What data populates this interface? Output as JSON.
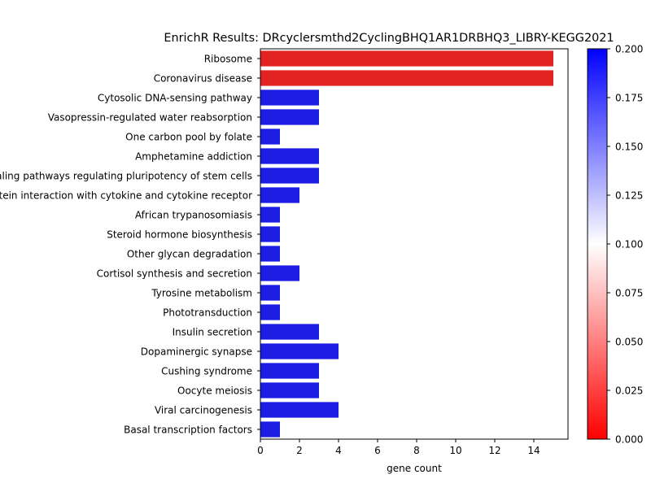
{
  "chart_data": {
    "type": "bar",
    "orientation": "horizontal",
    "title": "EnrichR Results: DRcyclersmthd2CyclingBHQ1AR1DRBHQ3_LIBRY-KEGG2021",
    "xlabel": "gene count",
    "ylabel": "",
    "xlim": [
      0,
      15.75
    ],
    "xticks": [
      0,
      2,
      4,
      6,
      8,
      10,
      12,
      14
    ],
    "grid": false,
    "categories": [
      "Ribosome",
      "Coronavirus disease",
      "Cytosolic DNA-sensing pathway",
      "Vasopressin-regulated water reabsorption",
      "One carbon pool by folate",
      "Amphetamine addiction",
      "Signaling pathways regulating pluripotency of stem cells",
      "Viral protein interaction with cytokine and cytokine receptor",
      "African trypanosomiasis",
      "Steroid hormone biosynthesis",
      "Other glycan degradation",
      "Cortisol synthesis and secretion",
      "Tyrosine metabolism",
      "Phototransduction",
      "Insulin secretion",
      "Dopaminergic synapse",
      "Cushing syndrome",
      "Oocyte meiosis",
      "Viral carcinogenesis",
      "Basal transcription factors"
    ],
    "values": [
      15,
      15,
      3,
      3,
      1,
      3,
      3,
      2,
      1,
      1,
      1,
      2,
      1,
      1,
      3,
      4,
      3,
      3,
      4,
      1
    ],
    "bar_colors": [
      "#e32222",
      "#e32222",
      "#1c1ce3",
      "#1c1ce3",
      "#1c1ce3",
      "#1c1ce3",
      "#1c1ce3",
      "#1c1ce3",
      "#1c1ce3",
      "#1c1ce3",
      "#1c1ce3",
      "#1c1ce3",
      "#1c1ce3",
      "#1c1ce3",
      "#1c1ce3",
      "#1c1ce3",
      "#1c1ce3",
      "#1c1ce3",
      "#1c1ce3",
      "#1c1ce3"
    ],
    "colorbar": {
      "min": 0.0,
      "max": 0.2,
      "ticks": [
        "0.000",
        "0.025",
        "0.050",
        "0.075",
        "0.100",
        "0.125",
        "0.150",
        "0.175",
        "0.200"
      ],
      "colormap": [
        "#ff0000",
        "#ffffff",
        "#0000ff"
      ]
    }
  }
}
